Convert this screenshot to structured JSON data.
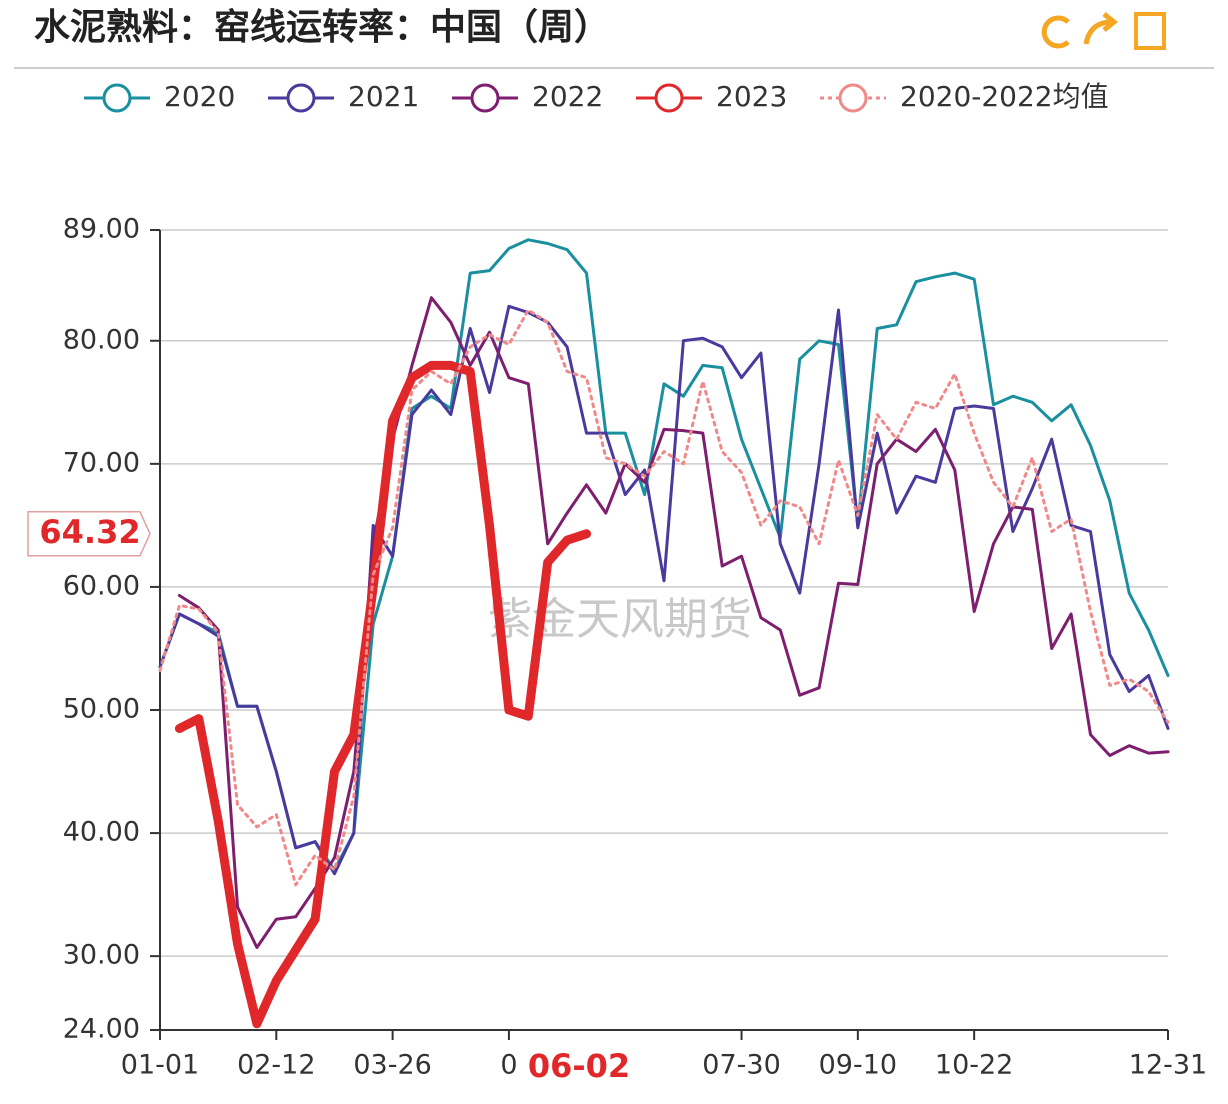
{
  "chart_data": {
    "type": "line",
    "title": "水泥熟料：窑线运转率：中国（周）",
    "watermark": "紫金天风期货",
    "x_pointer_label": "06-02",
    "y_pointer": 64.32,
    "categories": [
      "01-01",
      null,
      null,
      null,
      null,
      null,
      "02-12",
      null,
      null,
      null,
      null,
      null,
      "03-26",
      null,
      null,
      null,
      null,
      null,
      "0",
      null,
      null,
      null,
      null,
      null,
      null,
      null,
      null,
      null,
      null,
      null,
      "07-30",
      null,
      null,
      null,
      null,
      null,
      "09-10",
      null,
      null,
      null,
      null,
      null,
      "10-22",
      null,
      null,
      null,
      null,
      null,
      null,
      null,
      null,
      null,
      "12-31"
    ],
    "ylim": [
      24,
      89
    ],
    "yticks": [
      {
        "value": 24,
        "label": "24.00"
      },
      {
        "value": 30,
        "label": "30.00"
      },
      {
        "value": 40,
        "label": "40.00"
      },
      {
        "value": 50,
        "label": "50.00"
      },
      {
        "value": 60,
        "label": "60.00"
      },
      {
        "value": 70,
        "label": "70.00"
      },
      {
        "value": 80,
        "label": "80.00"
      },
      {
        "value": 89,
        "label": "89.00"
      }
    ],
    "grid": true,
    "series": [
      {
        "name": "2020",
        "color": "#1a8fa0",
        "width": 3,
        "dash": false,
        "values": [
          53.5,
          57.8,
          57,
          56.3,
          50.3,
          50.3,
          45,
          38.8,
          39.3,
          37,
          40,
          57,
          62.5,
          74.5,
          75.5,
          74.5,
          85.5,
          85.7,
          87.5,
          88.2,
          87.9,
          87.4,
          85.5,
          72.5,
          72.5,
          67.5,
          76.5,
          75.5,
          78,
          77.8,
          72,
          68,
          64,
          78.5,
          80,
          79.7,
          65,
          81,
          81.3,
          84.8,
          85.2,
          85.5,
          85,
          74.8,
          75.5,
          75,
          73.5,
          74.8,
          71.5,
          67,
          59.5,
          56.5,
          52.8
        ]
      },
      {
        "name": "2021",
        "color": "#4b3a9e",
        "width": 3,
        "dash": false,
        "values": [
          53.5,
          57.8,
          57,
          56,
          50.3,
          50.3,
          45,
          38.8,
          39.3,
          36.7,
          40,
          65,
          62.5,
          74,
          76,
          74,
          81,
          75.8,
          82.8,
          82.3,
          81.5,
          79.5,
          72.5,
          72.5,
          67.5,
          69.5,
          60.5,
          80,
          80.2,
          79.5,
          77,
          79,
          63.5,
          59.5,
          70,
          82.5,
          64.8,
          72.5,
          66,
          69,
          68.5,
          74.5,
          74.7,
          74.5,
          64.5,
          68,
          72,
          65,
          64.5,
          54.5,
          51.5,
          52.8,
          48.5
        ]
      },
      {
        "name": "2022",
        "color": "#7d1f6e",
        "width": 3,
        "dash": false,
        "values": [
          null,
          59.3,
          58.3,
          56.5,
          34,
          30.7,
          33,
          33.2,
          35.5,
          38,
          45,
          63.5,
          72,
          78,
          83.5,
          81.5,
          78,
          80.7,
          77,
          76.5,
          63.5,
          66,
          68.3,
          66,
          70,
          68.5,
          72.8,
          72.7,
          72.5,
          61.7,
          62.5,
          57.5,
          56.5,
          51.2,
          51.8,
          60.3,
          60.2,
          70,
          72,
          71,
          72.8,
          69.5,
          58,
          63.5,
          66.5,
          66.3,
          55,
          57.8,
          48,
          46.3,
          47.1,
          46.5,
          46.6
        ]
      },
      {
        "name": "2023",
        "color": "#e0272a",
        "width": 9,
        "dash": false,
        "values": [
          null,
          48.5,
          49.3,
          41,
          31,
          24.5,
          28,
          30.5,
          33,
          45,
          48,
          60,
          73.5,
          77,
          78,
          78,
          77.5,
          65,
          50,
          49.5,
          62,
          63.8,
          64.32,
          null,
          null,
          null,
          null,
          null,
          null,
          null,
          null,
          null,
          null,
          null,
          null,
          null,
          null,
          null,
          null,
          null,
          null,
          null,
          null,
          null,
          null,
          null,
          null,
          null,
          null,
          null,
          null,
          null,
          null
        ]
      },
      {
        "name": "2020-2022均值",
        "color": "#f08a8a",
        "width": 3,
        "dash": true,
        "values": [
          53.2,
          58.5,
          58.2,
          56.3,
          42.3,
          40.5,
          41.5,
          35.8,
          38.2,
          37,
          43,
          61,
          64.8,
          76,
          77.5,
          76.5,
          79.5,
          80.5,
          79.7,
          82.5,
          81.5,
          77.5,
          77,
          70.5,
          70,
          69,
          71,
          70,
          76.7,
          71,
          69.3,
          65,
          67,
          66.5,
          63.5,
          70.3,
          65.8,
          74,
          72,
          75,
          74.5,
          77.3,
          72.5,
          68.5,
          66.5,
          70.5,
          64.5,
          65.5,
          58,
          52,
          52.5,
          51.5,
          49
        ]
      }
    ]
  }
}
